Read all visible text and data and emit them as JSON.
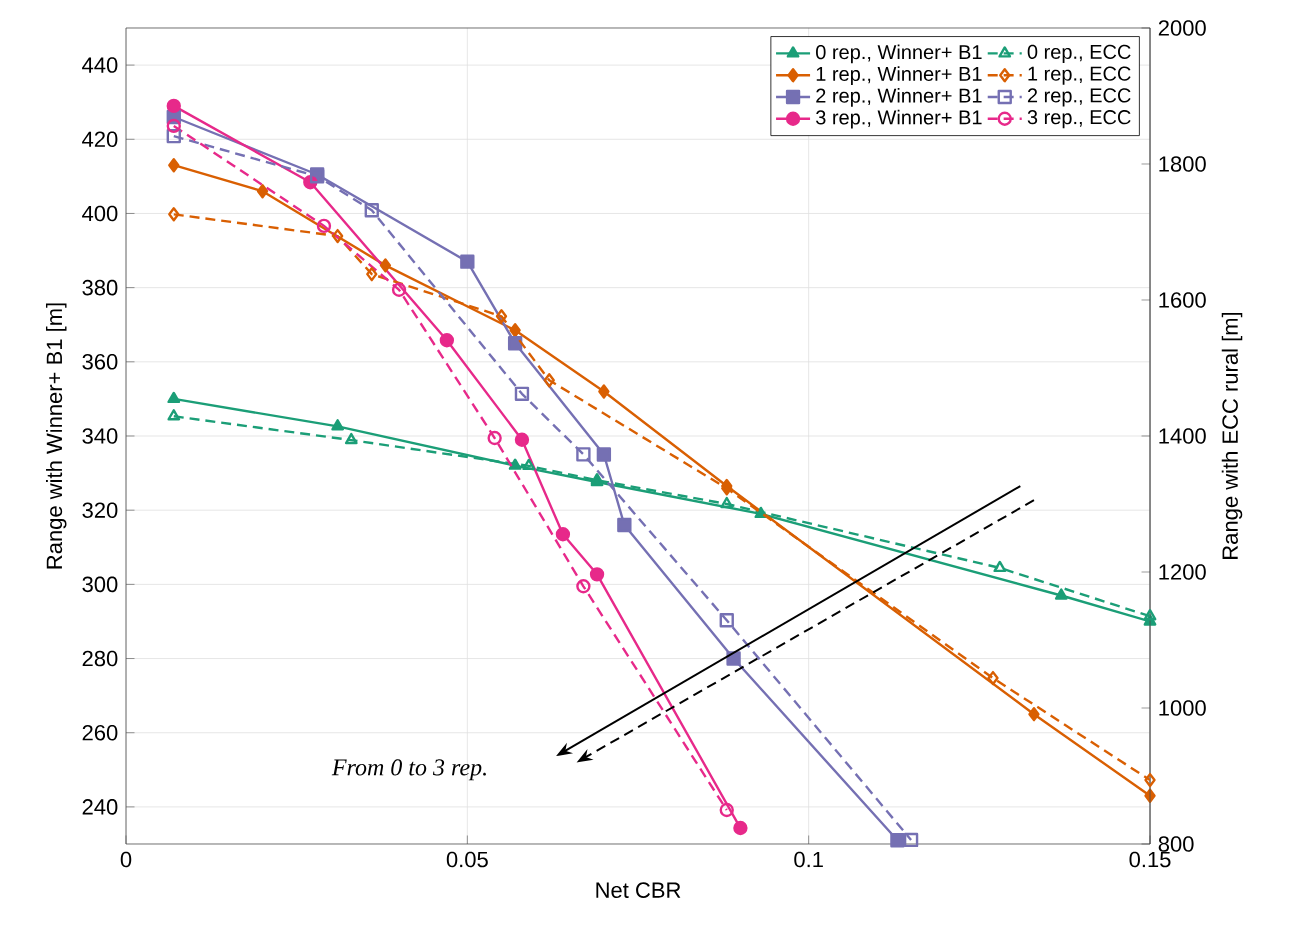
{
  "chart_data": {
    "type": "line",
    "xlabel": "Net CBR",
    "ylabel": "Range with Winner+ B1 [m]",
    "y2label": "Range with ECC rural [m]",
    "xlim": [
      0,
      0.15
    ],
    "ylim": [
      230,
      450
    ],
    "y2lim": [
      800,
      2000
    ],
    "xticks": [
      0,
      0.05,
      0.1,
      0.15
    ],
    "yticks": [
      240,
      260,
      280,
      300,
      320,
      340,
      360,
      380,
      400,
      420,
      440
    ],
    "y2ticks": [
      800,
      1000,
      1200,
      1400,
      1600,
      1800,
      2000
    ],
    "grid": true,
    "legend": "top right",
    "annotations": [
      "From 0 to 3 rep."
    ],
    "series": [
      {
        "name": "0 rep., Winner+ B1",
        "axis": "y",
        "color": "#1b9e77",
        "marker": "triangle",
        "line_style": "solid",
        "x": [
          0.007,
          0.031,
          0.057,
          0.069,
          0.093,
          0.137,
          0.15
        ],
        "values": [
          350,
          342.6,
          332,
          327.6,
          319,
          297,
          290
        ]
      },
      {
        "name": "1 rep., Winner+ B1",
        "axis": "y",
        "color": "#d95f02",
        "marker": "diamond",
        "line_style": "solid",
        "x": [
          0.007,
          0.02,
          0.038,
          0.057,
          0.07,
          0.088,
          0.133,
          0.15
        ],
        "values": [
          413,
          406,
          386,
          368.5,
          352,
          326.5,
          265,
          243
        ]
      },
      {
        "name": "2 rep., Winner+ B1",
        "axis": "y",
        "color": "#7570b3",
        "marker": "square",
        "line_style": "solid",
        "x": [
          0.007,
          0.028,
          0.05,
          0.057,
          0.07,
          0.073,
          0.089,
          0.113
        ],
        "values": [
          426,
          410.5,
          387,
          365,
          335,
          316,
          280,
          231
        ]
      },
      {
        "name": "3 rep., Winner+ B1",
        "axis": "y",
        "color": "#e7298a",
        "marker": "circle",
        "line_style": "solid",
        "x": [
          0.007,
          0.027,
          0.047,
          0.058,
          0.064,
          0.069,
          0.09
        ],
        "values": [
          429,
          408.4,
          365.8,
          339,
          313.5,
          302.7,
          234.3
        ]
      },
      {
        "name": "0 rep., ECC",
        "axis": "y2",
        "color": "#1b9e77",
        "marker": "triangle",
        "line_style": "dashed",
        "x": [
          0.007,
          0.033,
          0.059,
          0.069,
          0.088,
          0.128,
          0.15
        ],
        "values": [
          1429,
          1394,
          1356,
          1335,
          1300,
          1206,
          1135
        ]
      },
      {
        "name": "1 rep., ECC",
        "axis": "y2",
        "color": "#d95f02",
        "marker": "diamond",
        "line_style": "dashed",
        "x": [
          0.007,
          0.031,
          0.036,
          0.055,
          0.062,
          0.088,
          0.127,
          0.15
        ],
        "values": [
          1726,
          1694,
          1638,
          1576,
          1482,
          1323,
          1044,
          894
        ]
      },
      {
        "name": "2 rep., ECC",
        "axis": "y2",
        "color": "#7570b3",
        "marker": "square",
        "line_style": "dashed",
        "x": [
          0.007,
          0.028,
          0.036,
          0.058,
          0.067,
          0.088,
          0.115
        ],
        "values": [
          1841,
          1782,
          1732,
          1462,
          1373,
          1129,
          806
        ]
      },
      {
        "name": "3 rep., ECC",
        "axis": "y2",
        "color": "#e7298a",
        "marker": "circle",
        "line_style": "dashed",
        "x": [
          0.007,
          0.029,
          0.04,
          0.054,
          0.067,
          0.088
        ],
        "values": [
          1856,
          1709,
          1615,
          1397,
          1179,
          850
        ]
      }
    ]
  }
}
